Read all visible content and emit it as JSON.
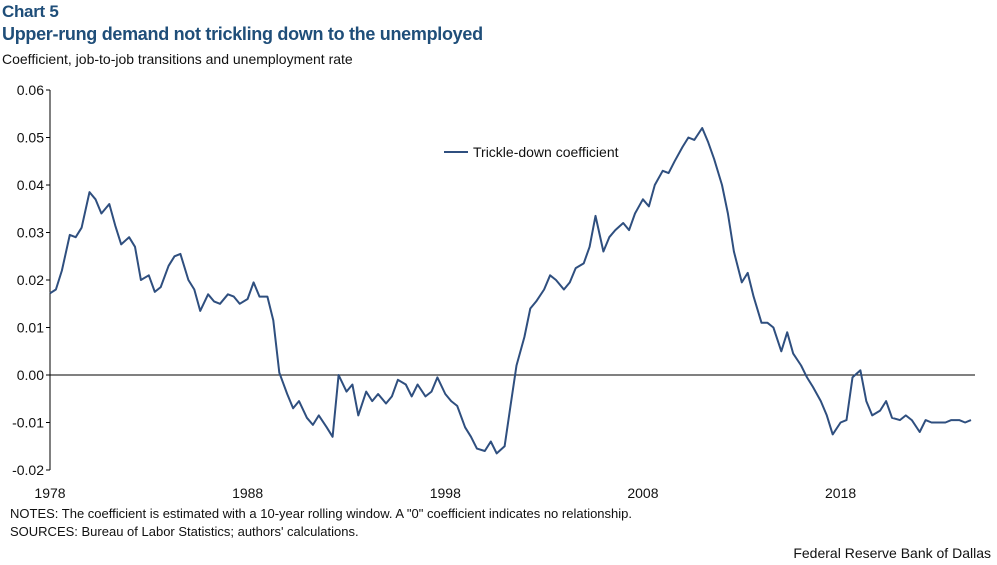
{
  "header": {
    "chart_number": "Chart 5",
    "title": "Upper-rung demand not trickling down to the unemployed",
    "subtitle": "Coefficient, job-to-job transitions and unemployment  rate"
  },
  "footer": {
    "notes": "NOTES: The coefficient is estimated with a 10-year rolling window. A \"0\" coefficient indicates no relationship.",
    "sources": "SOURCES: Bureau of Labor Statistics; authors' calculations.",
    "credit": "Federal Reserve Bank of Dallas"
  },
  "chart_data": {
    "type": "line",
    "title": "Upper-rung demand not trickling down to the unemployed",
    "ylabel": "Coefficient, job-to-job transitions and unemployment  rate",
    "xlabel": "",
    "xlim": [
      1978,
      2024.8
    ],
    "ylim": [
      -0.02,
      0.06
    ],
    "xticks": [
      1978,
      1988,
      1998,
      2008,
      2018
    ],
    "xtick_labels": [
      "1978",
      "1988",
      "1998",
      "2008",
      "2018"
    ],
    "yticks": [
      -0.02,
      -0.01,
      0.0,
      0.01,
      0.02,
      0.03,
      0.04,
      0.05,
      0.06
    ],
    "ytick_labels": [
      "-0.02",
      "-0.01",
      "0.00",
      "0.01",
      "0.02",
      "0.03",
      "0.04",
      "0.05",
      "0.06"
    ],
    "grid": false,
    "legend_position": "top-center",
    "line_color": "#2f4f7f",
    "series": [
      {
        "name": "Trickle-down coefficient",
        "x": [
          1978.0,
          1978.3,
          1978.6,
          1979.0,
          1979.3,
          1979.6,
          1980.0,
          1980.3,
          1980.6,
          1981.0,
          1981.3,
          1981.6,
          1982.0,
          1982.3,
          1982.6,
          1983.0,
          1983.3,
          1983.6,
          1984.0,
          1984.3,
          1984.6,
          1985.0,
          1985.3,
          1985.6,
          1986.0,
          1986.3,
          1986.6,
          1987.0,
          1987.3,
          1987.6,
          1988.0,
          1988.3,
          1988.6,
          1989.0,
          1989.3,
          1989.6,
          1990.0,
          1990.3,
          1990.6,
          1991.0,
          1991.3,
          1991.6,
          1992.0,
          1992.3,
          1992.6,
          1993.0,
          1993.3,
          1993.6,
          1994.0,
          1994.3,
          1994.6,
          1995.0,
          1995.3,
          1995.6,
          1996.0,
          1996.3,
          1996.6,
          1997.0,
          1997.3,
          1997.6,
          1998.0,
          1998.3,
          1998.6,
          1999.0,
          1999.3,
          1999.6,
          2000.0,
          2000.3,
          2000.6,
          2001.0,
          2001.3,
          2001.6,
          2002.0,
          2002.3,
          2002.6,
          2003.0,
          2003.3,
          2003.6,
          2004.0,
          2004.3,
          2004.6,
          2005.0,
          2005.3,
          2005.6,
          2006.0,
          2006.3,
          2006.6,
          2007.0,
          2007.3,
          2007.6,
          2008.0,
          2008.3,
          2008.6,
          2009.0,
          2009.3,
          2009.6,
          2010.0,
          2010.3,
          2010.6,
          2011.0,
          2011.3,
          2011.6,
          2012.0,
          2012.3,
          2012.6,
          2013.0,
          2013.3,
          2013.6,
          2014.0,
          2014.3,
          2014.6,
          2015.0,
          2015.3,
          2015.6,
          2016.0,
          2016.3,
          2016.6,
          2017.0,
          2017.3,
          2017.6,
          2018.0,
          2018.3,
          2018.6,
          2019.0,
          2019.3,
          2019.6,
          2020.0,
          2020.3,
          2020.6,
          2021.0,
          2021.3,
          2021.6,
          2022.0,
          2022.3,
          2022.6,
          2023.0,
          2023.3,
          2023.6,
          2024.0,
          2024.3,
          2024.6
        ],
        "y": [
          0.0172,
          0.018,
          0.022,
          0.0295,
          0.029,
          0.031,
          0.0385,
          0.037,
          0.034,
          0.036,
          0.0315,
          0.0275,
          0.029,
          0.027,
          0.02,
          0.021,
          0.0175,
          0.0185,
          0.023,
          0.025,
          0.0255,
          0.02,
          0.018,
          0.0135,
          0.017,
          0.0155,
          0.015,
          0.017,
          0.0165,
          0.015,
          0.016,
          0.0195,
          0.0165,
          0.0165,
          0.0115,
          0.0005,
          -0.004,
          -0.007,
          -0.0055,
          -0.009,
          -0.0105,
          -0.0085,
          -0.011,
          -0.013,
          0.0,
          -0.0035,
          -0.002,
          -0.0085,
          -0.0035,
          -0.0055,
          -0.004,
          -0.006,
          -0.0045,
          -0.001,
          -0.002,
          -0.0045,
          -0.002,
          -0.0045,
          -0.0035,
          -0.0005,
          -0.004,
          -0.0055,
          -0.0065,
          -0.011,
          -0.013,
          -0.0155,
          -0.016,
          -0.014,
          -0.0165,
          -0.015,
          -0.0065,
          0.002,
          0.008,
          0.014,
          0.0155,
          0.018,
          0.021,
          0.02,
          0.018,
          0.0195,
          0.0225,
          0.0235,
          0.027,
          0.0335,
          0.026,
          0.029,
          0.0305,
          0.032,
          0.0305,
          0.034,
          0.037,
          0.0355,
          0.04,
          0.043,
          0.0425,
          0.045,
          0.048,
          0.05,
          0.0495,
          0.052,
          0.049,
          0.0455,
          0.04,
          0.034,
          0.026,
          0.0195,
          0.0215,
          0.0165,
          0.011,
          0.011,
          0.01,
          0.005,
          0.009,
          0.0045,
          0.002,
          -0.0005,
          -0.0025,
          -0.0055,
          -0.0085,
          -0.0125,
          -0.01,
          -0.0095,
          -0.0005,
          0.001,
          -0.0055,
          -0.0085,
          -0.0075,
          -0.0055,
          -0.009,
          -0.0095,
          -0.0085,
          -0.0095,
          -0.012,
          -0.0095,
          -0.01,
          -0.01,
          -0.01,
          -0.0095,
          -0.0095,
          -0.01,
          -0.0095
        ]
      }
    ]
  }
}
